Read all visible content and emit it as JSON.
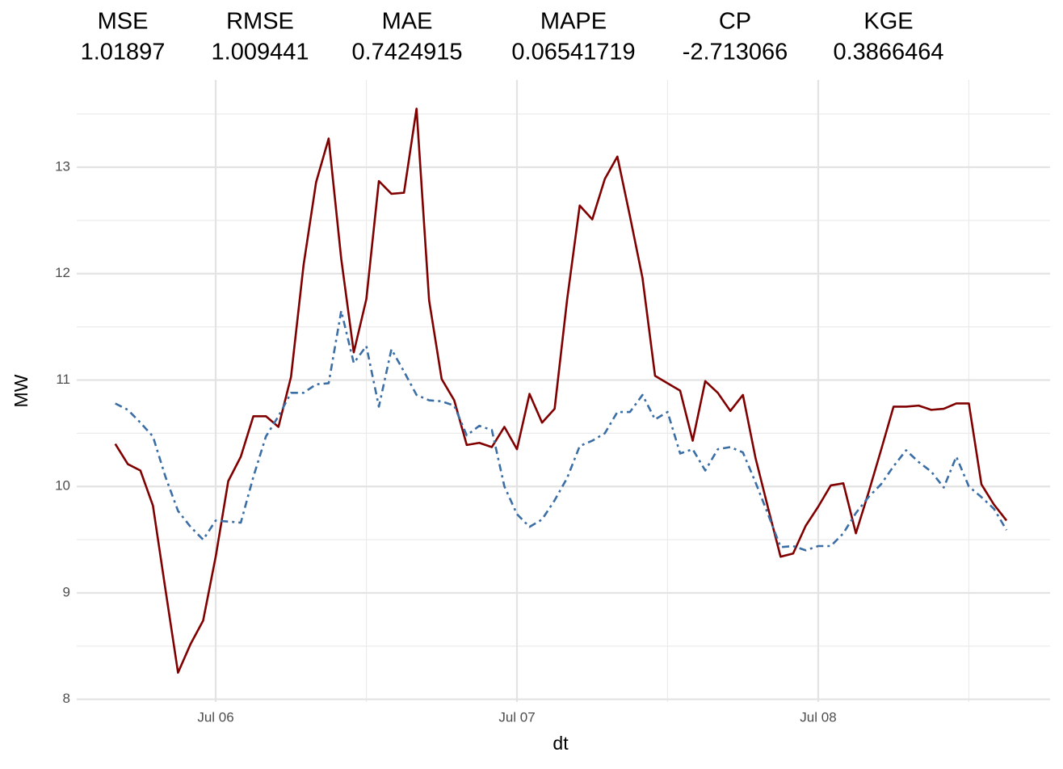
{
  "chart_data": {
    "type": "line",
    "metrics": [
      {
        "name": "MSE",
        "value": 1.01897
      },
      {
        "name": "RMSE",
        "value": 1.009441
      },
      {
        "name": "MAE",
        "value": 0.7424915
      },
      {
        "name": "MAPE",
        "value": 0.06541719
      },
      {
        "name": "CP",
        "value": -2.713066
      },
      {
        "name": "KGE",
        "value": 0.3866464
      }
    ],
    "xlabel": "dt",
    "ylabel": "MW",
    "x": [
      16,
      17,
      18,
      19,
      20,
      21,
      22,
      23,
      24,
      25,
      26,
      27,
      28,
      29,
      30,
      31,
      32,
      33,
      34,
      35,
      36,
      37,
      38,
      39,
      40,
      41,
      42,
      43,
      44,
      45,
      46,
      47,
      48,
      49,
      50,
      51,
      52,
      53,
      54,
      55,
      56,
      57,
      58,
      59,
      60,
      61,
      62,
      63,
      64,
      65,
      66,
      67,
      68,
      69,
      70,
      71,
      72,
      73,
      74,
      75,
      76,
      77,
      78,
      79,
      80,
      81,
      82,
      83,
      84,
      85,
      86,
      87
    ],
    "series": [
      {
        "color": "#800000",
        "dash": "solid",
        "values": [
          10.4,
          10.21,
          10.15,
          9.82,
          9.03,
          8.25,
          8.52,
          8.74,
          9.34,
          10.05,
          10.28,
          10.66,
          10.66,
          10.56,
          11.03,
          12.08,
          12.86,
          13.27,
          12.14,
          11.26,
          11.76,
          12.87,
          12.75,
          12.76,
          13.55,
          11.75,
          11.01,
          10.81,
          10.39,
          10.41,
          10.37,
          10.56,
          10.35,
          10.87,
          10.6,
          10.73,
          11.76,
          12.64,
          12.51,
          12.89,
          13.1,
          12.54,
          11.96,
          11.04,
          10.97,
          10.9,
          10.43,
          10.99,
          10.88,
          10.71,
          10.86,
          10.27,
          9.8,
          9.34,
          9.37,
          9.63,
          9.81,
          10.01,
          10.03,
          9.56,
          9.94,
          10.34,
          10.75,
          10.75,
          10.76,
          10.72,
          10.73,
          10.78,
          10.78,
          10.02,
          9.83,
          9.68
        ]
      },
      {
        "color": "#3a6ea5",
        "dash": "dotdash",
        "values": [
          10.78,
          10.72,
          10.6,
          10.47,
          10.09,
          9.77,
          9.62,
          9.5,
          9.68,
          9.67,
          9.66,
          10.09,
          10.47,
          10.66,
          10.88,
          10.88,
          10.96,
          10.97,
          11.65,
          11.16,
          11.32,
          10.75,
          11.29,
          11.08,
          10.86,
          10.81,
          10.8,
          10.76,
          10.48,
          10.57,
          10.53,
          10.0,
          9.74,
          9.62,
          9.69,
          9.87,
          10.08,
          10.38,
          10.43,
          10.5,
          10.7,
          10.7,
          10.86,
          10.63,
          10.7,
          10.31,
          10.35,
          10.15,
          10.35,
          10.37,
          10.32,
          10.04,
          9.74,
          9.43,
          9.44,
          9.4,
          9.44,
          9.44,
          9.56,
          9.75,
          9.9,
          10.02,
          10.19,
          10.34,
          10.23,
          10.14,
          9.99,
          10.28,
          10.0,
          9.9,
          9.79,
          9.59
        ]
      }
    ],
    "xlim": [
      12.93,
      90.47
    ],
    "xticks": [
      {
        "value": 24,
        "label": "Jul 06"
      },
      {
        "value": 48,
        "label": "Jul 07"
      },
      {
        "value": 72,
        "label": "Jul 08"
      }
    ],
    "xminor": [
      36,
      60,
      84
    ],
    "ylim": [
      7.975,
      13.82
    ],
    "yticks": [
      8,
      9,
      10,
      11,
      12,
      13
    ],
    "yminor": [
      8.5,
      9.5,
      10.5,
      11.5,
      12.5,
      13.5
    ],
    "grid": true
  }
}
